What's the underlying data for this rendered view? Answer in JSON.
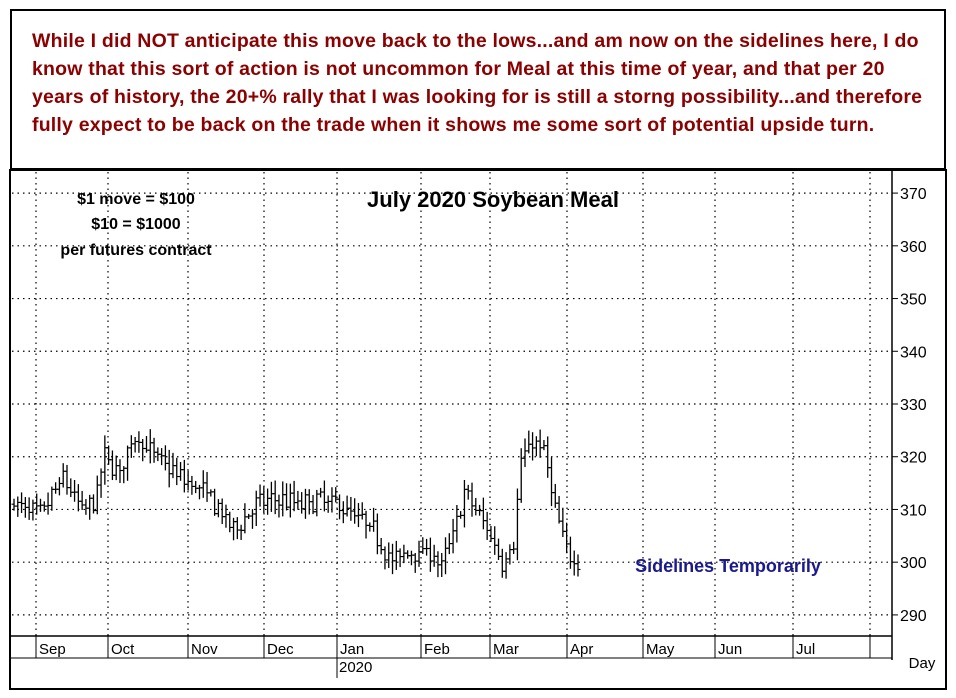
{
  "commentary": "While I did NOT anticipate this move back to the lows...and am now on the sidelines here, I do know that this sort of action is not uncommon for Meal at this time of year, and that per 20 years of history, the 20+% rally that I was looking for is still a storng possibility...and therefore fully expect to be back on the trade when it shows me some sort of potential upside turn.",
  "colors": {
    "commentary_text": "#8b0000",
    "annotation_text": "#1a1a8c",
    "bars": "#000000",
    "grid": "#000000"
  },
  "chart_data": {
    "type": "ohlc",
    "title": "July 2020 Soybean Meal",
    "info_lines": [
      "$1 move = $100",
      "$10 = $1000",
      "per futures contract"
    ],
    "y_ticks": [
      290,
      300,
      310,
      320,
      330,
      340,
      350,
      360,
      370
    ],
    "ylim": [
      286,
      374
    ],
    "y_axis_side": "right",
    "x_months": [
      "Sep",
      "Oct",
      "Nov",
      "Dec",
      "Jan",
      "Feb",
      "Mar",
      "Apr",
      "May",
      "Jun",
      "Jul"
    ],
    "x_year_label": "2020",
    "x_unit_label": "Day",
    "grid": true,
    "annotation": "Sidelines Temporarily",
    "bar_count": 150,
    "price_path": [
      {
        "bar": 0,
        "price": 311
      },
      {
        "bar": 7,
        "price": 309
      },
      {
        "bar": 13,
        "price": 316
      },
      {
        "bar": 18,
        "price": 310
      },
      {
        "bar": 21,
        "price": 311
      },
      {
        "bar": 24,
        "price": 320
      },
      {
        "bar": 28,
        "price": 317
      },
      {
        "bar": 32,
        "price": 324
      },
      {
        "bar": 36,
        "price": 321
      },
      {
        "bar": 44,
        "price": 316
      },
      {
        "bar": 51,
        "price": 313
      },
      {
        "bar": 58,
        "price": 306
      },
      {
        "bar": 64,
        "price": 311
      },
      {
        "bar": 70,
        "price": 312
      },
      {
        "bar": 76,
        "price": 311
      },
      {
        "bar": 82,
        "price": 312
      },
      {
        "bar": 88,
        "price": 310
      },
      {
        "bar": 95,
        "price": 306
      },
      {
        "bar": 100,
        "price": 300
      },
      {
        "bar": 104,
        "price": 302
      },
      {
        "bar": 110,
        "price": 302
      },
      {
        "bar": 113,
        "price": 299
      },
      {
        "bar": 117,
        "price": 308
      },
      {
        "bar": 119,
        "price": 313
      },
      {
        "bar": 122,
        "price": 310
      },
      {
        "bar": 126,
        "price": 305
      },
      {
        "bar": 129,
        "price": 300
      },
      {
        "bar": 132,
        "price": 304
      },
      {
        "bar": 134,
        "price": 319
      },
      {
        "bar": 137,
        "price": 323
      },
      {
        "bar": 140,
        "price": 321
      },
      {
        "bar": 143,
        "price": 310
      },
      {
        "bar": 146,
        "price": 302
      },
      {
        "bar": 149,
        "price": 300
      }
    ]
  }
}
